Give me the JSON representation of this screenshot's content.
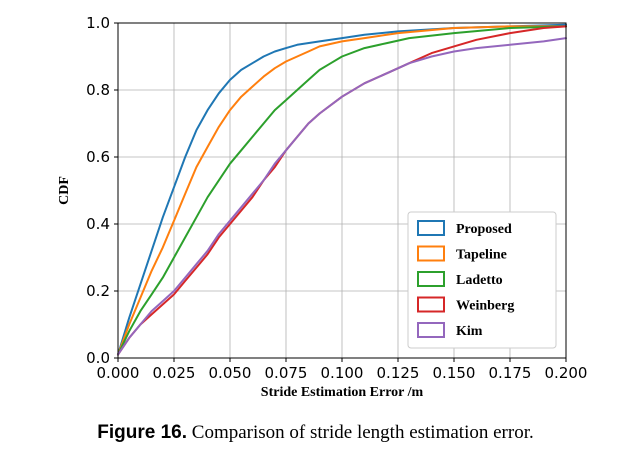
{
  "chart_data": {
    "type": "line",
    "title": "",
    "xlabel": "Stride Estimation Error /m",
    "ylabel": "CDF",
    "xlim": [
      0.0,
      0.2
    ],
    "ylim": [
      0.0,
      1.0
    ],
    "x_ticks": [
      "0.000",
      "0.025",
      "0.050",
      "0.075",
      "0.100",
      "0.125",
      "0.150",
      "0.175",
      "0.200"
    ],
    "y_ticks": [
      "0.0",
      "0.2",
      "0.4",
      "0.6",
      "0.8",
      "1.0"
    ],
    "grid": true,
    "legend_position": "lower-right",
    "series": [
      {
        "name": "Proposed",
        "color": "#1f77b4",
        "points": [
          [
            0,
            0.01
          ],
          [
            0.005,
            0.12
          ],
          [
            0.01,
            0.22
          ],
          [
            0.015,
            0.32
          ],
          [
            0.02,
            0.42
          ],
          [
            0.025,
            0.51
          ],
          [
            0.03,
            0.6
          ],
          [
            0.035,
            0.68
          ],
          [
            0.04,
            0.74
          ],
          [
            0.045,
            0.79
          ],
          [
            0.05,
            0.83
          ],
          [
            0.055,
            0.86
          ],
          [
            0.06,
            0.88
          ],
          [
            0.065,
            0.9
          ],
          [
            0.07,
            0.915
          ],
          [
            0.075,
            0.925
          ],
          [
            0.08,
            0.935
          ],
          [
            0.09,
            0.945
          ],
          [
            0.1,
            0.955
          ],
          [
            0.11,
            0.965
          ],
          [
            0.125,
            0.975
          ],
          [
            0.15,
            0.985
          ],
          [
            0.175,
            0.99
          ],
          [
            0.2,
            0.995
          ]
        ]
      },
      {
        "name": "Tapeline",
        "color": "#ff7f0e",
        "points": [
          [
            0,
            0.01
          ],
          [
            0.005,
            0.1
          ],
          [
            0.01,
            0.18
          ],
          [
            0.015,
            0.26
          ],
          [
            0.02,
            0.33
          ],
          [
            0.025,
            0.41
          ],
          [
            0.03,
            0.49
          ],
          [
            0.035,
            0.57
          ],
          [
            0.04,
            0.63
          ],
          [
            0.045,
            0.69
          ],
          [
            0.05,
            0.74
          ],
          [
            0.055,
            0.78
          ],
          [
            0.06,
            0.81
          ],
          [
            0.065,
            0.84
          ],
          [
            0.07,
            0.865
          ],
          [
            0.075,
            0.885
          ],
          [
            0.08,
            0.9
          ],
          [
            0.085,
            0.915
          ],
          [
            0.09,
            0.93
          ],
          [
            0.1,
            0.945
          ],
          [
            0.11,
            0.955
          ],
          [
            0.125,
            0.97
          ],
          [
            0.15,
            0.985
          ],
          [
            0.175,
            0.99
          ],
          [
            0.2,
            0.99
          ]
        ]
      },
      {
        "name": "Ladetto",
        "color": "#2ca02c",
        "points": [
          [
            0,
            0.01
          ],
          [
            0.005,
            0.08
          ],
          [
            0.01,
            0.14
          ],
          [
            0.015,
            0.19
          ],
          [
            0.02,
            0.24
          ],
          [
            0.025,
            0.3
          ],
          [
            0.03,
            0.36
          ],
          [
            0.035,
            0.42
          ],
          [
            0.04,
            0.48
          ],
          [
            0.045,
            0.53
          ],
          [
            0.05,
            0.58
          ],
          [
            0.055,
            0.62
          ],
          [
            0.06,
            0.66
          ],
          [
            0.065,
            0.7
          ],
          [
            0.07,
            0.74
          ],
          [
            0.075,
            0.77
          ],
          [
            0.08,
            0.8
          ],
          [
            0.085,
            0.83
          ],
          [
            0.09,
            0.86
          ],
          [
            0.095,
            0.88
          ],
          [
            0.1,
            0.9
          ],
          [
            0.11,
            0.925
          ],
          [
            0.12,
            0.94
          ],
          [
            0.13,
            0.955
          ],
          [
            0.15,
            0.97
          ],
          [
            0.175,
            0.985
          ],
          [
            0.2,
            0.99
          ]
        ]
      },
      {
        "name": "Weinberg",
        "color": "#d62728",
        "points": [
          [
            0,
            0.01
          ],
          [
            0.005,
            0.06
          ],
          [
            0.01,
            0.1
          ],
          [
            0.015,
            0.13
          ],
          [
            0.02,
            0.16
          ],
          [
            0.025,
            0.19
          ],
          [
            0.03,
            0.23
          ],
          [
            0.035,
            0.27
          ],
          [
            0.04,
            0.31
          ],
          [
            0.045,
            0.36
          ],
          [
            0.05,
            0.4
          ],
          [
            0.055,
            0.44
          ],
          [
            0.06,
            0.48
          ],
          [
            0.065,
            0.53
          ],
          [
            0.07,
            0.57
          ],
          [
            0.075,
            0.62
          ],
          [
            0.08,
            0.66
          ],
          [
            0.085,
            0.7
          ],
          [
            0.09,
            0.73
          ],
          [
            0.1,
            0.78
          ],
          [
            0.11,
            0.82
          ],
          [
            0.12,
            0.85
          ],
          [
            0.13,
            0.88
          ],
          [
            0.14,
            0.91
          ],
          [
            0.15,
            0.93
          ],
          [
            0.16,
            0.95
          ],
          [
            0.175,
            0.97
          ],
          [
            0.19,
            0.985
          ],
          [
            0.2,
            0.99
          ]
        ]
      },
      {
        "name": "Kim",
        "color": "#9467bd",
        "points": [
          [
            0,
            0.01
          ],
          [
            0.005,
            0.06
          ],
          [
            0.01,
            0.1
          ],
          [
            0.015,
            0.14
          ],
          [
            0.02,
            0.17
          ],
          [
            0.025,
            0.2
          ],
          [
            0.03,
            0.24
          ],
          [
            0.035,
            0.28
          ],
          [
            0.04,
            0.32
          ],
          [
            0.045,
            0.37
          ],
          [
            0.05,
            0.41
          ],
          [
            0.055,
            0.45
          ],
          [
            0.06,
            0.49
          ],
          [
            0.065,
            0.53
          ],
          [
            0.07,
            0.58
          ],
          [
            0.075,
            0.62
          ],
          [
            0.08,
            0.66
          ],
          [
            0.085,
            0.7
          ],
          [
            0.09,
            0.73
          ],
          [
            0.1,
            0.78
          ],
          [
            0.11,
            0.82
          ],
          [
            0.12,
            0.85
          ],
          [
            0.13,
            0.88
          ],
          [
            0.14,
            0.9
          ],
          [
            0.15,
            0.915
          ],
          [
            0.16,
            0.925
          ],
          [
            0.175,
            0.935
          ],
          [
            0.19,
            0.945
          ],
          [
            0.2,
            0.955
          ]
        ]
      }
    ]
  },
  "caption": {
    "label": "Figure 16.",
    "text": "Comparison of stride length estimation error."
  }
}
